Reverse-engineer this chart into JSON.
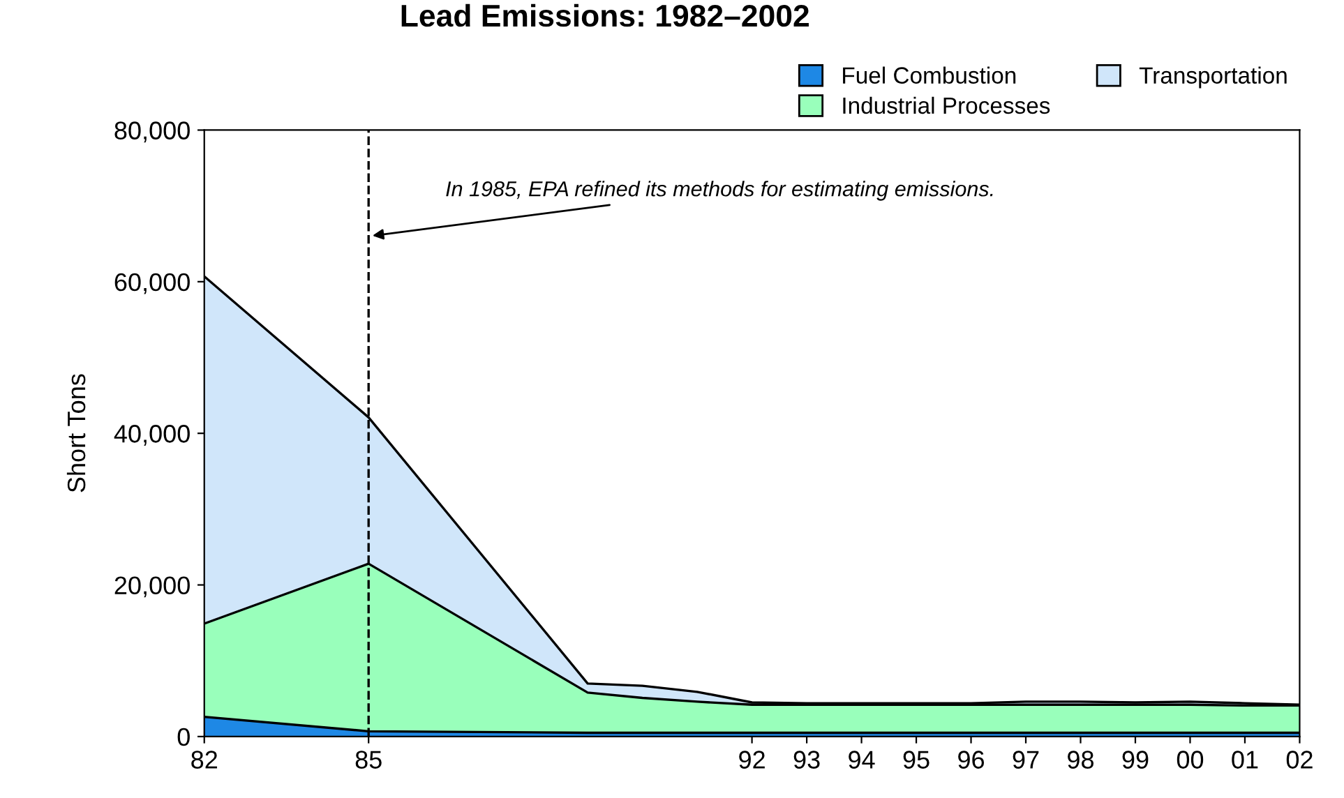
{
  "chart_data": {
    "type": "area",
    "stacked": true,
    "title": "Lead Emissions: 1982–2002",
    "ylabel": "Short Tons",
    "x": [
      1982,
      1985,
      1989,
      1990,
      1991,
      1992,
      1993,
      1994,
      1995,
      1996,
      1997,
      1998,
      1999,
      2000,
      2001,
      2002
    ],
    "series": [
      {
        "name": "Fuel Combustion",
        "color": "#1e88e5",
        "values": [
          2600,
          700,
          500,
          500,
          500,
          500,
          500,
          500,
          500,
          500,
          500,
          500,
          500,
          500,
          500,
          500
        ]
      },
      {
        "name": "Industrial Processes",
        "color": "#99ffbb",
        "values": [
          12300,
          22100,
          5300,
          4600,
          4100,
          3700,
          3700,
          3700,
          3700,
          3700,
          3700,
          3700,
          3700,
          3700,
          3600,
          3600
        ]
      },
      {
        "name": "Transportation",
        "color": "#d0e6fa",
        "values": [
          45800,
          19300,
          1200,
          1600,
          1300,
          300,
          200,
          200,
          200,
          200,
          400,
          400,
          300,
          400,
          300,
          100
        ]
      }
    ],
    "xlim": [
      1982,
      2002
    ],
    "ylim": [
      0,
      80000
    ],
    "xticks": [
      {
        "value": 1982,
        "label": "82"
      },
      {
        "value": 1985,
        "label": "85"
      },
      {
        "value": 1992,
        "label": "92"
      },
      {
        "value": 1993,
        "label": "93"
      },
      {
        "value": 1994,
        "label": "94"
      },
      {
        "value": 1995,
        "label": "95"
      },
      {
        "value": 1996,
        "label": "96"
      },
      {
        "value": 1997,
        "label": "97"
      },
      {
        "value": 1998,
        "label": "98"
      },
      {
        "value": 1999,
        "label": "99"
      },
      {
        "value": 2000,
        "label": "00"
      },
      {
        "value": 2001,
        "label": "01"
      },
      {
        "value": 2002,
        "label": "02"
      }
    ],
    "yticks": [
      {
        "value": 0,
        "label": "0"
      },
      {
        "value": 20000,
        "label": "20,000"
      },
      {
        "value": 40000,
        "label": "40,000"
      },
      {
        "value": 60000,
        "label": "60,000"
      },
      {
        "value": 80000,
        "label": "80,000"
      }
    ],
    "ref_lines": [
      {
        "axis": "x",
        "value": 1985,
        "line_style": "dashed",
        "color": "#000000"
      }
    ],
    "annotations": [
      {
        "text": "In 1985, EPA refined its methods for estimating emissions.",
        "x": 1985,
        "y": 66000
      }
    ],
    "grid": false,
    "legend": "top right"
  }
}
